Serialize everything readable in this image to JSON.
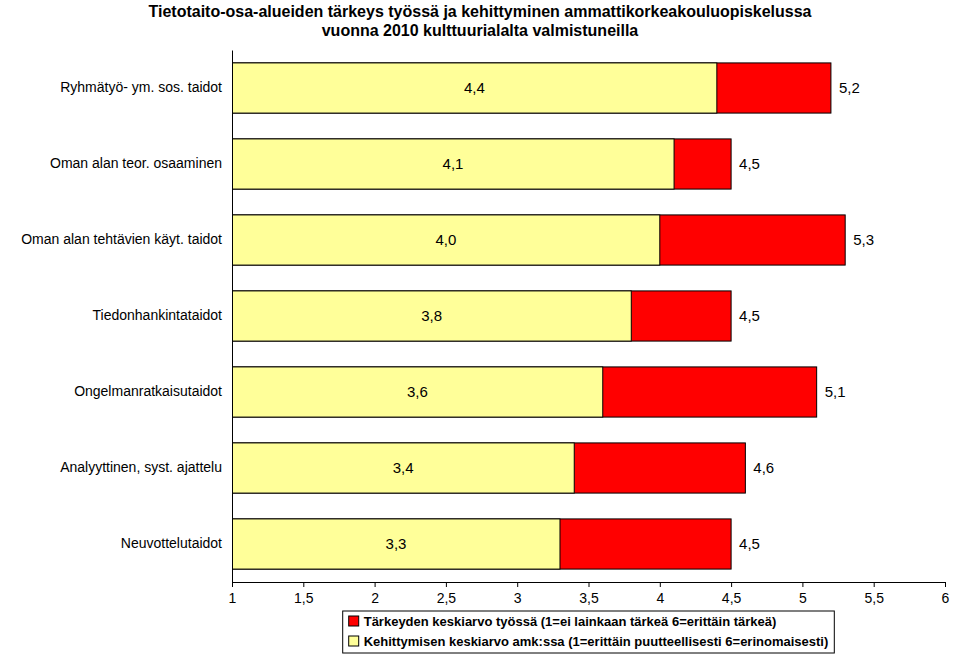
{
  "chart_data": {
    "type": "bar",
    "orientation": "horizontal",
    "title": "Tietotaito-osa-alueiden tärkeys työssä ja kehittyminen ammattikorkeakouluopiskelussa\nvuonna 2010 kulttuurialalta valmistuneilla",
    "categories": [
      "Ryhmätyö- ym. sos. taidot",
      "Oman alan teor. osaaminen",
      "Oman alan tehtävien käyt. taidot",
      "Tiedonhankintataidot",
      "Ongelmanratkaisutaidot",
      "Analyyttinen, syst. ajattelu",
      "Neuvottelutaidot"
    ],
    "series": [
      {
        "name": "Tärkeyden keskiarvo työssä (1=ei lainkaan tärkeä 6=erittäin tärkeä)",
        "color": "#ff0000",
        "values": [
          5.2,
          4.5,
          5.3,
          4.5,
          5.1,
          4.6,
          4.5
        ],
        "value_labels": [
          "5,2",
          "4,5",
          "5,3",
          "4,5",
          "5,1",
          "4,6",
          "4,5"
        ]
      },
      {
        "name": "Kehittymisen keskiarvo amk:ssa (1=erittäin puutteellisesti 6=erinomaisesti)",
        "color": "#ffff99",
        "values": [
          4.4,
          4.1,
          4.0,
          3.8,
          3.6,
          3.4,
          3.3
        ],
        "value_labels": [
          "4,4",
          "4,1",
          "4,0",
          "3,8",
          "3,6",
          "3,4",
          "3,3"
        ]
      }
    ],
    "xlim": [
      1,
      6
    ],
    "xticks": [
      1,
      {
        "value": 1.5,
        "label": "1,5"
      },
      2,
      {
        "value": 2.5,
        "label": "2,5"
      },
      3,
      {
        "value": 3.5,
        "label": "3,5"
      },
      4,
      {
        "value": 4.5,
        "label": "4,5"
      },
      5,
      {
        "value": 5.5,
        "label": "5,5"
      },
      6
    ],
    "data_labels": true,
    "grid": false,
    "legend": "bottom"
  }
}
